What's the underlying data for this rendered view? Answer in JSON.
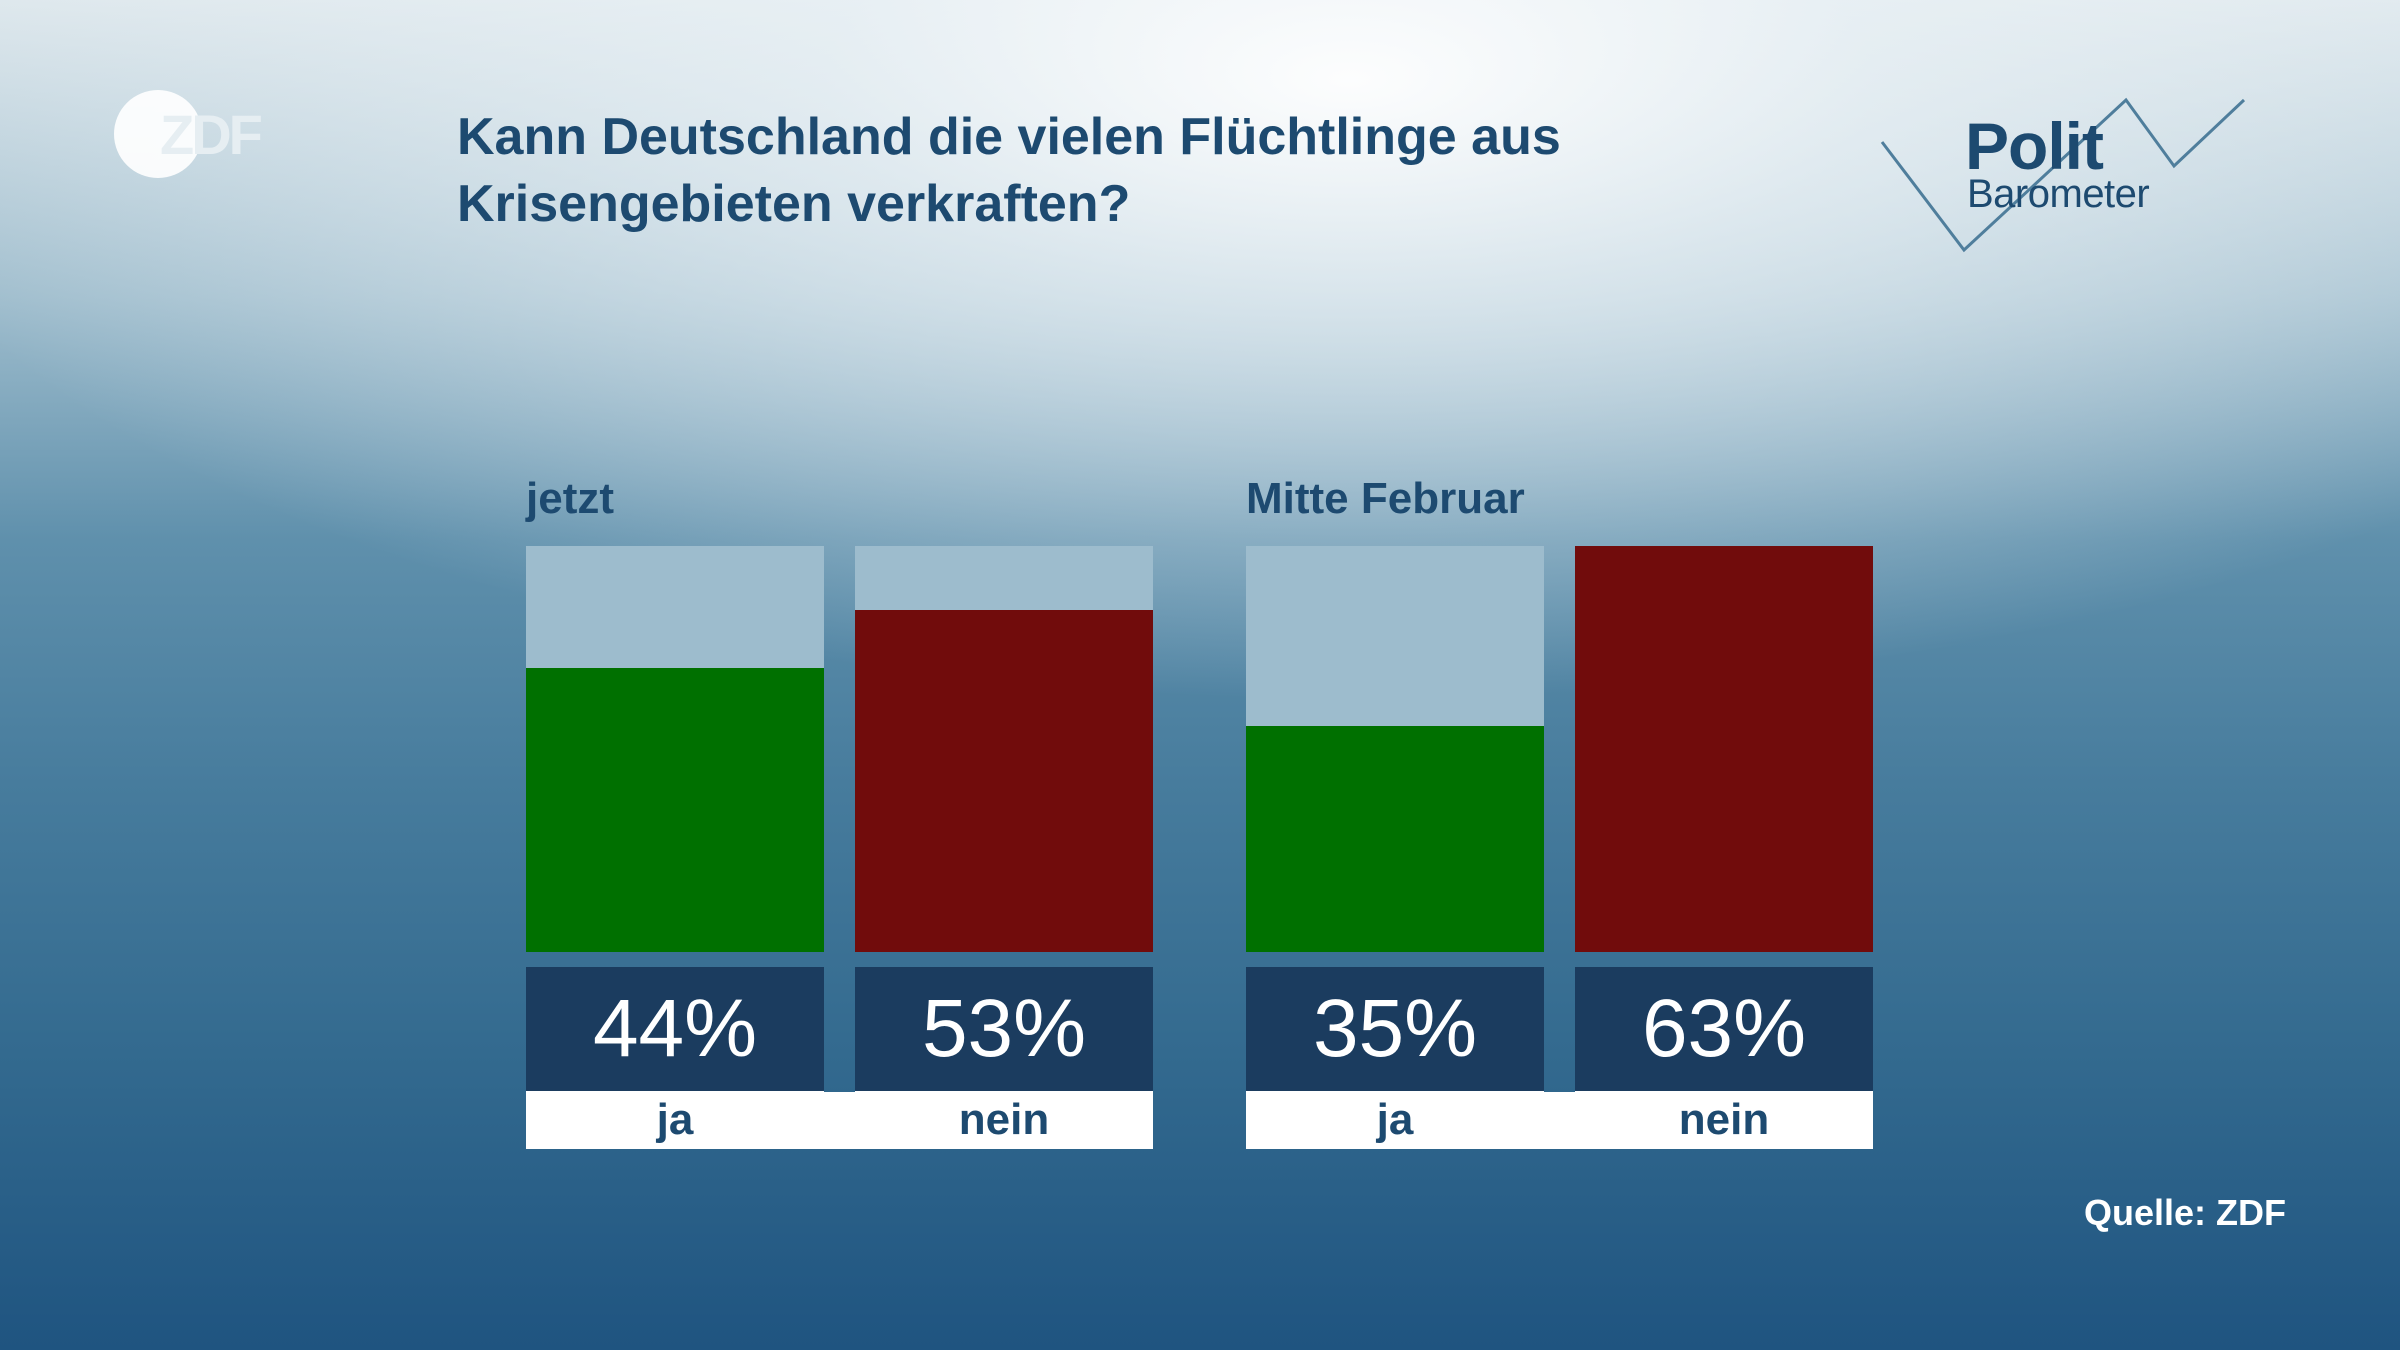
{
  "header": {
    "title": "Kann Deutschland die vielen Flüchtlinge aus Krisengebieten verkraften?",
    "logo_left": {
      "text": "ZDF",
      "icon": "zdf-logo"
    },
    "logo_right": {
      "line1": "Polit",
      "line2": "Barometer",
      "icon": "politbarometer-logo"
    }
  },
  "source": "Quelle: ZDF",
  "colors": {
    "ja": "#007000",
    "nein": "#710c0c",
    "track": "#9dbccd",
    "value_box": "#1b3c5f",
    "title": "#1d4a70"
  },
  "chart_data": {
    "type": "bar",
    "title": "Kann Deutschland die vielen Flüchtlinge aus Krisengebieten verkraften?",
    "categories": [
      "ja",
      "nein"
    ],
    "unit": "%",
    "ylim": [
      0,
      63
    ],
    "grid": false,
    "groups": [
      {
        "name": "jetzt",
        "bars": [
          {
            "category": "ja",
            "value": 44,
            "label": "44%"
          },
          {
            "category": "nein",
            "value": 53,
            "label": "53%"
          }
        ]
      },
      {
        "name": "Mitte Februar",
        "bars": [
          {
            "category": "ja",
            "value": 35,
            "label": "35%"
          },
          {
            "category": "nein",
            "value": 63,
            "label": "63%"
          }
        ]
      }
    ]
  }
}
